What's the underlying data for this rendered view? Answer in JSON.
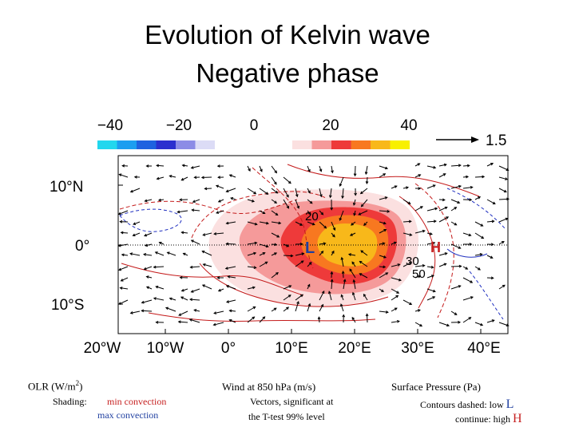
{
  "title": {
    "line1": "Evolution of Kelvin wave",
    "line2": "Negative phase"
  },
  "colorbar": {
    "labels": [
      "−40",
      "−20",
      "0",
      "20",
      "40"
    ],
    "negative_colors": [
      "#22d7ee",
      "#1c9ef0",
      "#1f62e0",
      "#2b2fcf",
      "#8c8ce6",
      "#dcdcf6"
    ],
    "positive_colors": [
      "#fbe0e0",
      "#f59a9a",
      "#ee3a3a",
      "#f87820",
      "#f8b81a",
      "#f8f000"
    ],
    "vector_reference": "1.5"
  },
  "map": {
    "x_tick_labels": [
      "20°W",
      "10°W",
      "0°",
      "10°E",
      "20°E",
      "30°E",
      "40°E"
    ],
    "y_tick_labels": [
      "10°N",
      "0°",
      "10°S"
    ],
    "low_marker": "L",
    "high_marker": "H",
    "contour_labels": [
      "20",
      "30",
      "50"
    ]
  },
  "legend": {
    "olr_title": "OLR (W/m",
    "olr_superscript": "2",
    "olr_close": ")",
    "shading_label": "Shading:",
    "min_convection": "min convection",
    "max_convection": "max convection",
    "wind_title": "Wind at 850 hPa (m/s)",
    "vectors_line1": "Vectors, significant at",
    "vectors_line2": "the T-test 99% level",
    "pressure_title": "Surface Pressure (Pa)",
    "contours_dashed": "Contours dashed: low",
    "low_symbol": "L",
    "contours_continue": "continue:  high",
    "high_symbol": "H"
  },
  "colors": {
    "low": "#1f3fa0",
    "high": "#c62020",
    "contour_red": "#c41a1a",
    "contour_blue": "#2030c0"
  }
}
